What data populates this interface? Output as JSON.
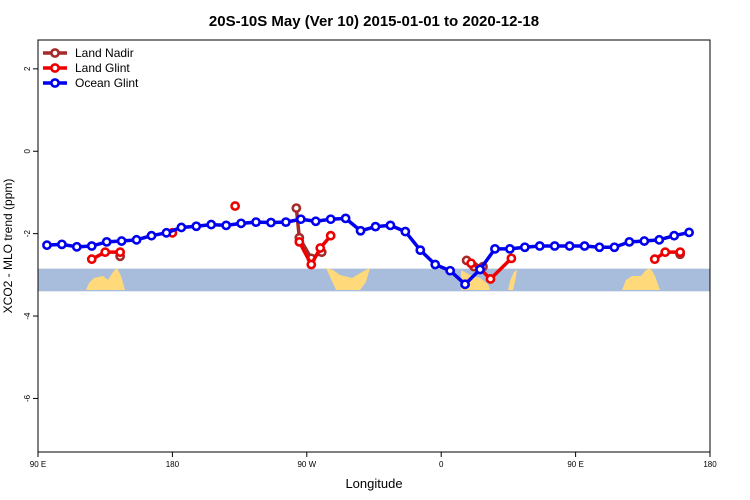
{
  "chart_data": {
    "type": "line",
    "title": "20S-10S May (Ver 10)   2015-01-01 to 2020-12-18",
    "xlabel": "Longitude",
    "ylabel": "XCO2 - MLO trend (ppm)",
    "xlim": [
      90,
      540
    ],
    "ylim": [
      -7.3,
      2.7
    ],
    "x_ticks": [
      {
        "value": 90,
        "label": "90 E"
      },
      {
        "value": 180,
        "label": "180"
      },
      {
        "value": 270,
        "label": "90 W"
      },
      {
        "value": 360,
        "label": "0"
      },
      {
        "value": 450,
        "label": "90 E"
      },
      {
        "value": 540,
        "label": "180"
      }
    ],
    "y_ticks": [
      {
        "value": 2,
        "label": "2"
      },
      {
        "value": 0,
        "label": "0"
      },
      {
        "value": -2,
        "label": "-2"
      },
      {
        "value": -4,
        "label": "-4"
      },
      {
        "value": -6,
        "label": "-6"
      }
    ],
    "grid": false,
    "legend_position": "top-left",
    "land_band": {
      "ymin": -3.4,
      "ymax": -2.85,
      "ocean_color": "#a8bddb",
      "land_color": "#ffd97a"
    },
    "series": [
      {
        "name": "Land Nadir",
        "color": "#a52a2a",
        "segments": [
          [
            [
              145,
              -2.55
            ]
          ],
          [
            [
              263,
              -1.38
            ],
            [
              265,
              -2.1
            ],
            [
              273,
              -2.6
            ],
            [
              280,
              -2.45
            ]
          ],
          [
            [
              377,
              -2.65
            ],
            [
              382,
              -2.8
            ],
            [
              388,
              -2.8
            ]
          ],
          [
            [
              520,
              -2.5
            ]
          ]
        ]
      },
      {
        "name": "Land Glint",
        "color": "#ee0000",
        "segments": [
          [
            [
              126,
              -2.62
            ],
            [
              135,
              -2.45
            ],
            [
              145,
              -2.45
            ]
          ],
          [
            [
              180,
              -1.98
            ]
          ],
          [
            [
              222,
              -1.33
            ]
          ],
          [
            [
              265,
              -2.2
            ],
            [
              273,
              -2.75
            ],
            [
              279,
              -2.35
            ],
            [
              286,
              -2.05
            ]
          ],
          [
            [
              380,
              -2.72
            ],
            [
              386,
              -2.85
            ],
            [
              393,
              -3.1
            ],
            [
              407,
              -2.6
            ]
          ],
          [
            [
              503,
              -2.62
            ],
            [
              510,
              -2.45
            ],
            [
              520,
              -2.45
            ]
          ]
        ]
      },
      {
        "name": "Ocean Glint",
        "color": "#0000ee",
        "segments": [
          [
            [
              96,
              -2.28
            ],
            [
              106,
              -2.26
            ],
            [
              116,
              -2.32
            ],
            [
              126,
              -2.3
            ],
            [
              136,
              -2.2
            ],
            [
              146,
              -2.18
            ],
            [
              156,
              -2.15
            ],
            [
              166,
              -2.05
            ],
            [
              176,
              -1.98
            ],
            [
              186,
              -1.85
            ],
            [
              196,
              -1.82
            ],
            [
              206,
              -1.78
            ],
            [
              216,
              -1.8
            ],
            [
              226,
              -1.75
            ],
            [
              236,
              -1.72
            ],
            [
              246,
              -1.73
            ],
            [
              256,
              -1.72
            ],
            [
              266,
              -1.65
            ],
            [
              276,
              -1.7
            ],
            [
              286,
              -1.65
            ],
            [
              296,
              -1.63
            ],
            [
              306,
              -1.93
            ],
            [
              316,
              -1.83
            ],
            [
              326,
              -1.8
            ],
            [
              336,
              -1.95
            ],
            [
              346,
              -2.4
            ],
            [
              356,
              -2.75
            ],
            [
              366,
              -2.9
            ],
            [
              376,
              -3.23
            ],
            [
              386,
              -2.87
            ],
            [
              396,
              -2.37
            ],
            [
              406,
              -2.37
            ],
            [
              416,
              -2.33
            ],
            [
              426,
              -2.3
            ],
            [
              436,
              -2.3
            ],
            [
              446,
              -2.3
            ],
            [
              456,
              -2.3
            ],
            [
              466,
              -2.33
            ],
            [
              476,
              -2.33
            ],
            [
              486,
              -2.2
            ],
            [
              496,
              -2.18
            ],
            [
              506,
              -2.15
            ],
            [
              516,
              -2.05
            ],
            [
              526,
              -1.97
            ]
          ]
        ]
      }
    ]
  }
}
